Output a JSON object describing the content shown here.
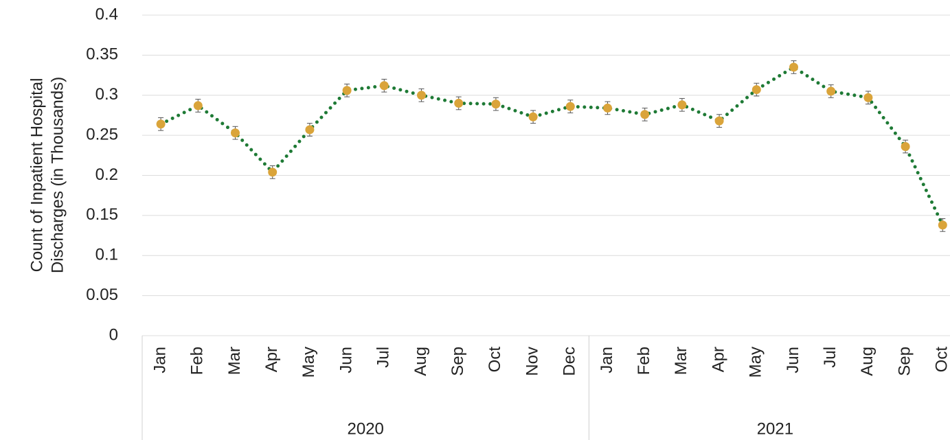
{
  "chart_data": {
    "type": "line",
    "ylabel": [
      "Count of Inpatient Hospital",
      "Discharges (in Thousands)"
    ],
    "groups": [
      {
        "name": "2020",
        "categories": [
          "Jan",
          "Feb",
          "Mar",
          "Apr",
          "May",
          "Jun",
          "Jul",
          "Aug",
          "Sep",
          "Oct",
          "Nov",
          "Dec"
        ]
      },
      {
        "name": "2021",
        "categories": [
          "Jan",
          "Feb",
          "Mar",
          "Apr",
          "May",
          "Jun",
          "Jul",
          "Aug",
          "Sep",
          "Oct"
        ]
      }
    ],
    "series": [
      {
        "line_color": "#1e7a35",
        "color": "#daa43a",
        "values": [
          0.264,
          0.287,
          0.253,
          0.204,
          0.257,
          0.306,
          0.312,
          0.3,
          0.29,
          0.289,
          0.273,
          0.286,
          0.284,
          0.276,
          0.288,
          0.268,
          0.307,
          0.335,
          0.305,
          0.297,
          0.236,
          0.138
        ],
        "errors": [
          0.008,
          0.008,
          0.008,
          0.008,
          0.008,
          0.008,
          0.008,
          0.008,
          0.008,
          0.008,
          0.008,
          0.008,
          0.008,
          0.008,
          0.008,
          0.008,
          0.008,
          0.008,
          0.008,
          0.008,
          0.008,
          0.008
        ]
      }
    ],
    "ylim": [
      0,
      0.4
    ],
    "yticks": [
      0,
      0.05,
      0.1,
      0.15,
      0.2,
      0.25,
      0.3,
      0.35,
      0.4
    ],
    "grid": true
  }
}
